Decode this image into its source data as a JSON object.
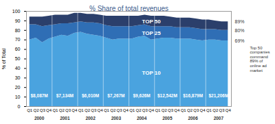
{
  "chart_data": {
    "type": "area",
    "title": "% Share of total revenues",
    "y_label": "% of Total",
    "categories": [
      "Q1",
      "Q2",
      "Q3",
      "Q4",
      "Q1",
      "Q2",
      "Q3",
      "Q4",
      "Q1",
      "Q2",
      "Q3",
      "Q4",
      "Q1",
      "Q2",
      "Q3",
      "Q4",
      "Q1",
      "Q2",
      "Q3",
      "Q4",
      "Q1",
      "Q2",
      "Q3",
      "Q4",
      "Q1",
      "Q2",
      "Q3",
      "Q4",
      "Q1",
      "Q2",
      "Q3",
      "Q4"
    ],
    "years": [
      "2000",
      "2001",
      "2002",
      "2003",
      "2004",
      "2005",
      "2006",
      "2007"
    ],
    "revenue_labels": [
      "$8,087M",
      "$7,134M",
      "$6,010M",
      "$7,267M",
      "$9,626M",
      "$12,542M",
      "$16,879M",
      "$21,206M"
    ],
    "series": [
      {
        "name": "TOP 10",
        "color": "#4aa3df",
        "values": [
          70,
          72,
          67,
          71,
          73,
          75,
          74,
          77,
          78,
          76,
          75,
          74,
          72,
          70,
          71,
          71,
          71,
          73,
          74,
          70,
          71,
          72,
          72,
          71,
          71,
          71,
          70,
          69,
          70,
          70,
          69,
          69
        ]
      },
      {
        "name": "TOP 25",
        "color": "#2f6eb5",
        "values": [
          16,
          14,
          17,
          14,
          13,
          12,
          13,
          11,
          11,
          12,
          13,
          13,
          13,
          14,
          13,
          13,
          13,
          12,
          12,
          14,
          13,
          12,
          12,
          12,
          12,
          12,
          12,
          12,
          11,
          11,
          11,
          11
        ]
      },
      {
        "name": "TOP 50",
        "color": "#2b3f6b",
        "values": [
          8,
          8,
          10,
          10,
          10,
          9,
          9,
          10,
          9,
          9,
          9,
          9,
          10,
          11,
          11,
          11,
          11,
          10,
          10,
          11,
          11,
          11,
          10,
          10,
          10,
          10,
          10,
          10,
          10,
          9,
          9,
          9
        ]
      }
    ],
    "stacked": true,
    "grid": false,
    "ylim": [
      0,
      100
    ],
    "yticks": [
      0,
      10,
      20,
      30,
      40,
      50,
      60,
      70,
      80,
      90,
      100
    ],
    "annotations": [
      {
        "text": "89%",
        "value": 89
      },
      {
        "text": "80%",
        "value": 80
      },
      {
        "text": "69%",
        "value": 69
      }
    ],
    "note": "Top 50 companies command 89% of online ad market"
  }
}
